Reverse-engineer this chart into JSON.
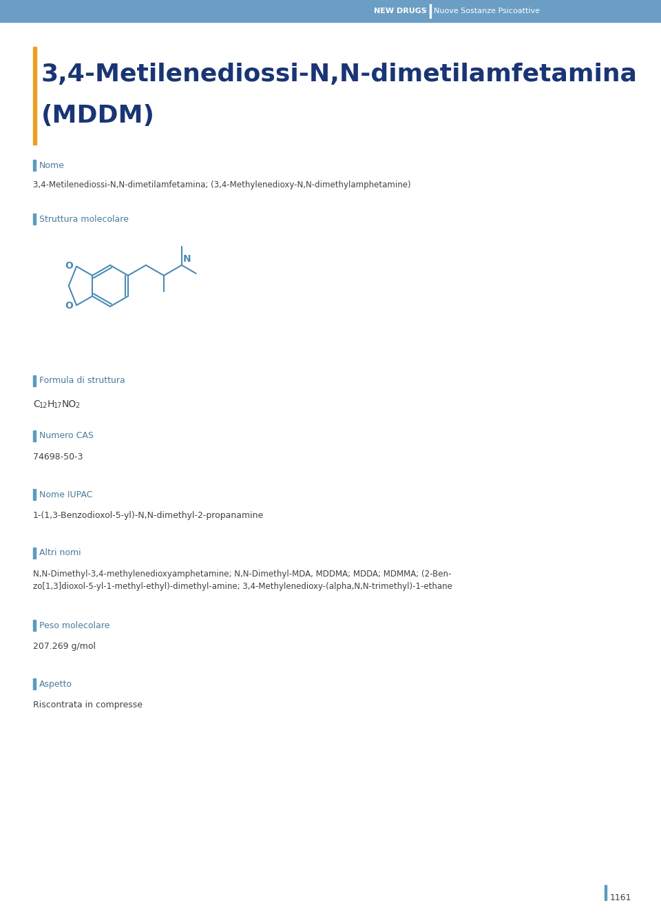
{
  "header_bg_color": "#6B9EC4",
  "header_text_left": "NEW DRUGS",
  "header_text_right": "Nuove Sostanze Psicoattive",
  "header_text_color": "#FFFFFF",
  "page_bg_color": "#FFFFFF",
  "accent_bar_color": "#E8A020",
  "section_bar_color": "#5B9BBF",
  "section_label_color": "#4A7A9B",
  "title_color": "#1A3575",
  "body_text_color": "#404040",
  "title_line1": "3,4-Metilenediossi-N,N-dimetilamfetamina",
  "title_line2": "(MDDM)",
  "mol_color": "#4A8AB5",
  "page_number": "1161"
}
